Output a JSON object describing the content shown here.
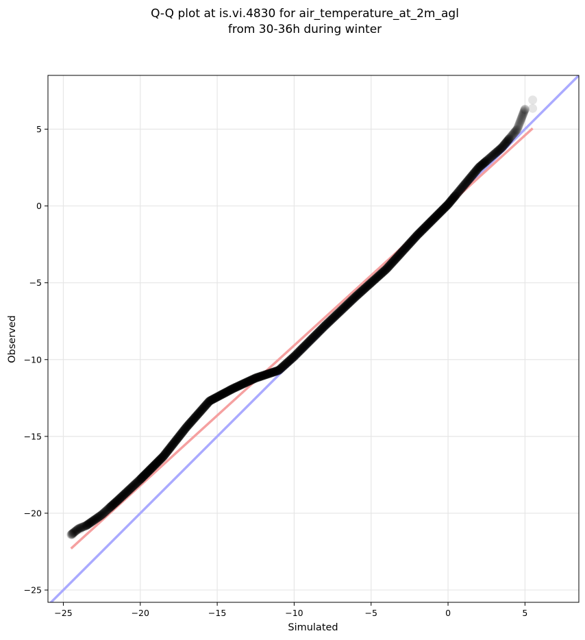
{
  "chart_data": {
    "type": "scatter",
    "title_lines": [
      "Q-Q plot at is.vi.4830 for air_temperature_at_2m_agl",
      "from 30-36h during winter"
    ],
    "xlabel": "Simulated",
    "ylabel": "Observed",
    "xlim": [
      -26,
      8.5
    ],
    "ylim": [
      -25.8,
      8.5
    ],
    "xticks": [
      -25,
      -20,
      -15,
      -10,
      -5,
      0,
      5
    ],
    "yticks": [
      -25,
      -20,
      -15,
      -10,
      -5,
      0,
      5
    ],
    "grid": true,
    "reference_lines": [
      {
        "kind": "identity",
        "color": "#aaaaff",
        "from": [
          -26,
          -26
        ],
        "to": [
          8.5,
          8.5
        ]
      },
      {
        "kind": "fit",
        "color": "#f5a0a0",
        "from": [
          -24.5,
          -22.3
        ],
        "to": [
          5.5,
          5.05
        ]
      }
    ],
    "point_color": "#000000",
    "quantile_knots": {
      "x": [
        -24.5,
        -24,
        -23.5,
        -22.5,
        -21.5,
        -20,
        -18.5,
        -17,
        -15.5,
        -14,
        -12.5,
        -11,
        -10,
        -8,
        -6,
        -4,
        -2,
        0,
        2,
        3.5,
        4.5,
        5
      ],
      "y": [
        -21.4,
        -21,
        -20.8,
        -20.1,
        -19.2,
        -17.8,
        -16.3,
        -14.4,
        -12.7,
        -11.9,
        -11.2,
        -10.7,
        -9.8,
        -7.8,
        -5.9,
        -4.1,
        -1.9,
        0.1,
        2.5,
        3.8,
        5.0,
        6.3
      ]
    },
    "extreme_points": [
      {
        "x": 5.5,
        "y": 6.9
      },
      {
        "x": 5.5,
        "y": 6.35
      },
      {
        "x": 5.0,
        "y": 6.3
      },
      {
        "x": -24.4,
        "y": -21.4
      },
      {
        "x": -23.9,
        "y": -21.05
      },
      {
        "x": -23.5,
        "y": -20.8
      }
    ]
  }
}
